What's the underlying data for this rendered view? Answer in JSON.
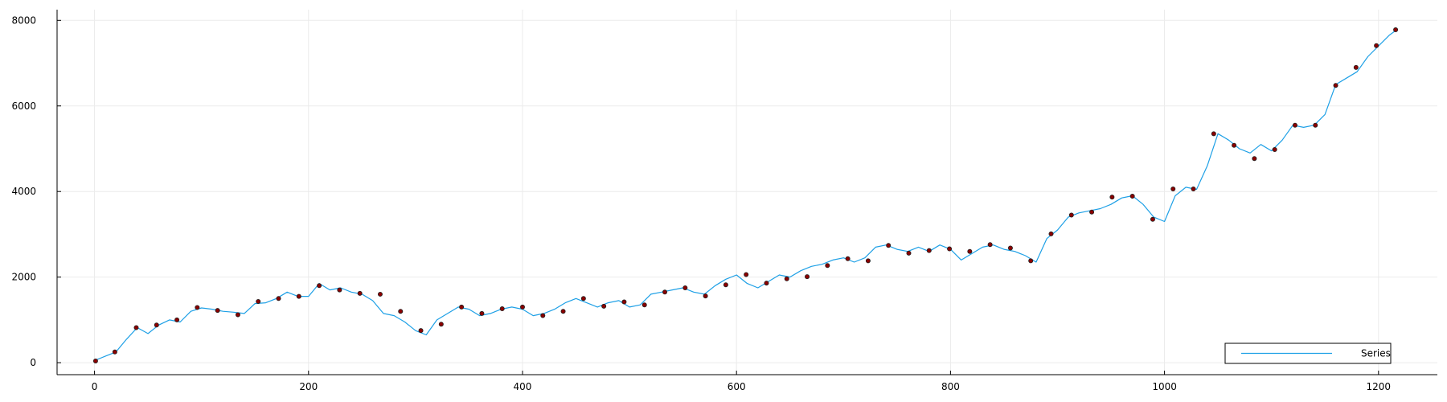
{
  "chart_data": {
    "type": "line",
    "title": "",
    "xlabel": "",
    "ylabel": "",
    "xlim": [
      -35,
      1255
    ],
    "ylim": [
      -280,
      8250
    ],
    "x_ticks": [
      0,
      200,
      400,
      600,
      800,
      1000,
      1200
    ],
    "y_ticks": [
      0,
      2000,
      4000,
      6000,
      8000
    ],
    "grid": true,
    "legend_position": "bottom-right",
    "colors": {
      "line": "#1ea0e6",
      "markers": "#8b0000",
      "axis": "#000000",
      "grid": "#ebebeb"
    },
    "series": [
      {
        "name": "Series",
        "x": [
          0,
          10,
          20,
          30,
          40,
          50,
          60,
          70,
          80,
          90,
          100,
          110,
          120,
          130,
          140,
          150,
          160,
          170,
          180,
          190,
          200,
          210,
          220,
          230,
          240,
          250,
          260,
          270,
          280,
          290,
          300,
          310,
          320,
          330,
          340,
          350,
          360,
          370,
          380,
          390,
          400,
          410,
          420,
          430,
          440,
          450,
          460,
          470,
          480,
          490,
          500,
          510,
          520,
          530,
          540,
          550,
          560,
          570,
          580,
          590,
          600,
          610,
          620,
          630,
          640,
          650,
          660,
          670,
          680,
          690,
          700,
          710,
          720,
          730,
          740,
          750,
          760,
          770,
          780,
          790,
          800,
          810,
          820,
          830,
          840,
          850,
          860,
          870,
          880,
          890,
          900,
          910,
          920,
          930,
          940,
          950,
          960,
          970,
          980,
          990,
          1000,
          1010,
          1020,
          1030,
          1040,
          1050,
          1060,
          1070,
          1080,
          1090,
          1100,
          1110,
          1120,
          1130,
          1140,
          1150,
          1160,
          1170,
          1180,
          1190,
          1200,
          1210,
          1218
        ],
        "y": [
          50,
          150,
          250,
          550,
          820,
          680,
          880,
          1000,
          950,
          1200,
          1280,
          1250,
          1200,
          1180,
          1150,
          1380,
          1400,
          1500,
          1650,
          1550,
          1550,
          1850,
          1700,
          1750,
          1650,
          1600,
          1450,
          1150,
          1100,
          950,
          750,
          650,
          1000,
          1150,
          1300,
          1250,
          1100,
          1150,
          1250,
          1300,
          1250,
          1100,
          1150,
          1250,
          1400,
          1500,
          1400,
          1300,
          1400,
          1450,
          1300,
          1350,
          1600,
          1650,
          1700,
          1750,
          1650,
          1600,
          1800,
          1950,
          2050,
          1850,
          1750,
          1900,
          2050,
          2000,
          2150,
          2250,
          2300,
          2400,
          2450,
          2350,
          2450,
          2700,
          2750,
          2650,
          2600,
          2700,
          2600,
          2750,
          2650,
          2400,
          2550,
          2700,
          2750,
          2650,
          2600,
          2500,
          2350,
          2900,
          3100,
          3400,
          3500,
          3550,
          3600,
          3700,
          3850,
          3900,
          3700,
          3400,
          3300,
          3900,
          4100,
          4050,
          4600,
          5350,
          5200,
          5000,
          4900,
          5100,
          4950,
          5200,
          5550,
          5500,
          5550,
          5800,
          6500,
          6650,
          6800,
          7150,
          7400,
          7650,
          7800
        ]
      },
      {
        "name": "",
        "type": "scatter",
        "x": [
          1,
          19,
          39,
          58,
          77,
          96,
          115,
          134,
          153,
          172,
          191,
          210,
          229,
          248,
          267,
          286,
          305,
          324,
          343,
          362,
          381,
          400,
          419,
          438,
          457,
          476,
          495,
          514,
          533,
          552,
          571,
          590,
          609,
          628,
          647,
          666,
          685,
          704,
          723,
          742,
          761,
          780,
          799,
          818,
          837,
          856,
          875,
          894,
          913,
          932,
          951,
          970,
          989,
          1008,
          1027,
          1046,
          1065,
          1084,
          1103,
          1122,
          1141,
          1160,
          1179,
          1198,
          1216
        ],
        "y": [
          40,
          250,
          820,
          880,
          1000,
          1290,
          1220,
          1120,
          1430,
          1500,
          1550,
          1800,
          1700,
          1620,
          1600,
          1200,
          750,
          900,
          1300,
          1150,
          1260,
          1300,
          1100,
          1200,
          1500,
          1320,
          1420,
          1350,
          1650,
          1750,
          1560,
          1820,
          2060,
          1860,
          1960,
          2010,
          2270,
          2430,
          2380,
          2740,
          2560,
          2620,
          2660,
          2600,
          2760,
          2680,
          2380,
          3010,
          3450,
          3520,
          3870,
          3890,
          3350,
          4060,
          4060,
          5350,
          5080,
          4770,
          4980,
          5550,
          5550,
          6480,
          6900,
          7410,
          7780
        ]
      }
    ]
  }
}
